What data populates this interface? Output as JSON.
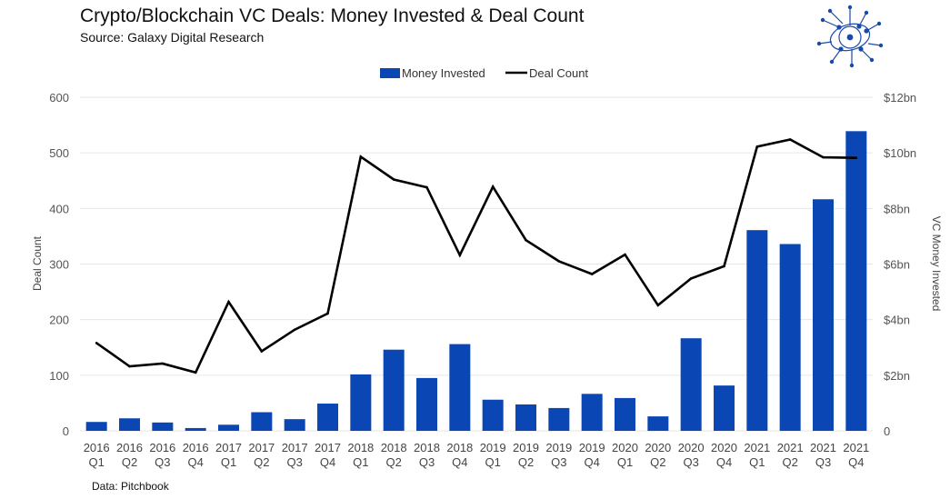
{
  "header": {
    "title": "Crypto/Blockchain VC Deals: Money Invested & Deal Count",
    "subtitle": "Source: Galaxy Digital Research"
  },
  "footer": {
    "note": "Data: Pitchbook"
  },
  "logo": {
    "icon": "network-globe-logo",
    "color": "#1a4aa8"
  },
  "colors": {
    "bar": "#0a47b4",
    "line": "#000000",
    "grid": "#e6e6e6"
  },
  "chart_data": {
    "type": "bar",
    "title": "Crypto/Blockchain VC Deals: Money Invested & Deal Count",
    "categories": [
      [
        "2016",
        "Q1"
      ],
      [
        "2016",
        "Q2"
      ],
      [
        "2016",
        "Q3"
      ],
      [
        "2016",
        "Q4"
      ],
      [
        "2017",
        "Q1"
      ],
      [
        "2017",
        "Q2"
      ],
      [
        "2017",
        "Q3"
      ],
      [
        "2017",
        "Q4"
      ],
      [
        "2018",
        "Q1"
      ],
      [
        "2018",
        "Q2"
      ],
      [
        "2018",
        "Q3"
      ],
      [
        "2018",
        "Q4"
      ],
      [
        "2019",
        "Q1"
      ],
      [
        "2019",
        "Q2"
      ],
      [
        "2019",
        "Q3"
      ],
      [
        "2019",
        "Q4"
      ],
      [
        "2020",
        "Q1"
      ],
      [
        "2020",
        "Q2"
      ],
      [
        "2020",
        "Q3"
      ],
      [
        "2020",
        "Q4"
      ],
      [
        "2021",
        "Q1"
      ],
      [
        "2021",
        "Q2"
      ],
      [
        "2021",
        "Q3"
      ],
      [
        "2021",
        "Q4"
      ]
    ],
    "series": [
      {
        "name": "Money Invested",
        "type": "bar",
        "axis": "right",
        "unit": "$bn",
        "values": [
          0.32,
          0.45,
          0.3,
          0.1,
          0.22,
          0.67,
          0.42,
          0.98,
          2.03,
          2.92,
          1.9,
          3.12,
          1.12,
          0.95,
          0.82,
          1.33,
          1.18,
          0.52,
          3.33,
          1.63,
          7.22,
          6.72,
          8.33,
          10.78
        ]
      },
      {
        "name": "Deal Count",
        "type": "line",
        "axis": "left",
        "values": [
          158,
          116,
          121,
          105,
          232,
          143,
          182,
          211,
          493,
          452,
          438,
          316,
          439,
          343,
          305,
          282,
          317,
          226,
          274,
          296,
          511,
          524,
          492,
          491
        ]
      }
    ],
    "left_axis": {
      "label": "Deal Count",
      "range": [
        0,
        600
      ],
      "ticks": [
        "0",
        "100",
        "200",
        "300",
        "400",
        "500",
        "600"
      ]
    },
    "right_axis": {
      "label": "VC Money Invested",
      "range": [
        0,
        12
      ],
      "ticks": [
        "0",
        "$2bn",
        "$4bn",
        "$6bn",
        "$8bn",
        "$10bn",
        "$12bn"
      ]
    },
    "legend": {
      "position": "top-center",
      "entries": [
        "Money Invested",
        "Deal Count"
      ]
    },
    "grid": true
  }
}
